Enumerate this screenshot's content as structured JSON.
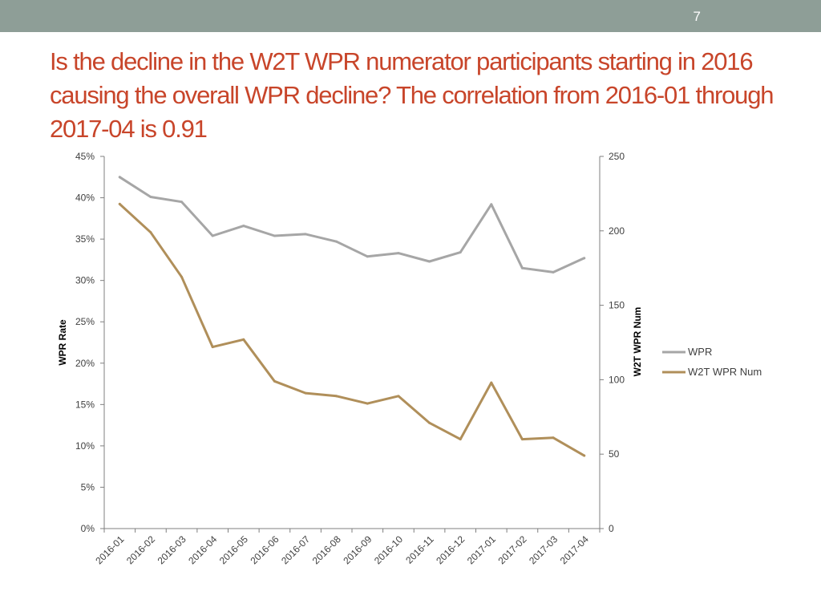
{
  "slide": {
    "page_number": "7",
    "title": "Is the decline in the W2T WPR numerator participants starting in 2016 causing the overall WPR decline? The correlation from 2016-01 through 2017-04 is 0.91"
  },
  "colors": {
    "header_bar": "#8e9e97",
    "title": "#c8452a",
    "wpr_line": "#a6a6a6",
    "w2t_line": "#b08f5a"
  },
  "chart_data": {
    "type": "line",
    "categories": [
      "2016-01",
      "2016-02",
      "2016-03",
      "2016-04",
      "2016-05",
      "2016-06",
      "2016-07",
      "2016-08",
      "2016-09",
      "2016-10",
      "2016-11",
      "2016-12",
      "2017-01",
      "2017-02",
      "2017-03",
      "2017-04"
    ],
    "series": [
      {
        "name": "WPR",
        "axis": "left",
        "color": "#a6a6a6",
        "values": [
          42.5,
          40.1,
          39.5,
          35.4,
          36.6,
          35.4,
          35.6,
          34.7,
          32.9,
          33.3,
          32.3,
          33.4,
          39.2,
          31.5,
          31.0,
          32.7
        ]
      },
      {
        "name": "W2T WPR Num",
        "axis": "right",
        "color": "#b08f5a",
        "values": [
          218,
          199,
          169,
          122,
          127,
          99,
          91,
          89,
          84,
          89,
          71,
          60,
          98,
          60,
          61,
          49
        ]
      }
    ],
    "y_left": {
      "label": "WPR Rate",
      "lim": [
        0,
        45
      ],
      "ticks": [
        0,
        5,
        10,
        15,
        20,
        25,
        30,
        35,
        40,
        45
      ],
      "tick_labels": [
        "0%",
        "5%",
        "10%",
        "15%",
        "20%",
        "25%",
        "30%",
        "35%",
        "40%",
        "45%"
      ]
    },
    "y_right": {
      "label": "W2T WPR Num",
      "lim": [
        0,
        250
      ],
      "ticks": [
        0,
        50,
        100,
        150,
        200,
        250
      ],
      "tick_labels": [
        "0",
        "50",
        "100",
        "150",
        "200",
        "250"
      ]
    },
    "legend": [
      "WPR",
      "W2T WPR Num"
    ],
    "legend_position": "right",
    "grid": false
  }
}
